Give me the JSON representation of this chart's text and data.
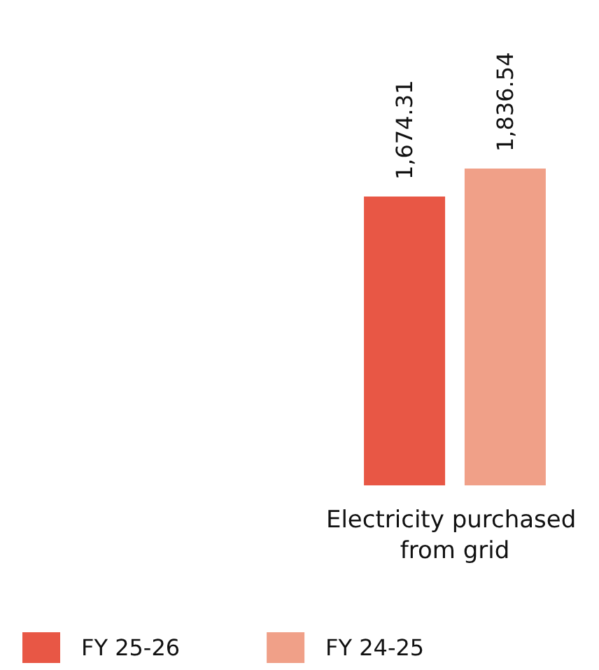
{
  "chart_data": {
    "type": "bar",
    "categories": [
      "Electricity purchased from grid"
    ],
    "series": [
      {
        "name": "FY 25-26",
        "color": "#e85745",
        "values": [
          1674.31
        ],
        "value_labels": [
          "1,674.31"
        ]
      },
      {
        "name": "FY 24-25",
        "color": "#f0a088",
        "values": [
          1836.54
        ],
        "value_labels": [
          "1,836.54"
        ]
      }
    ],
    "tick_labels": "x",
    "legend": "bottom left"
  }
}
